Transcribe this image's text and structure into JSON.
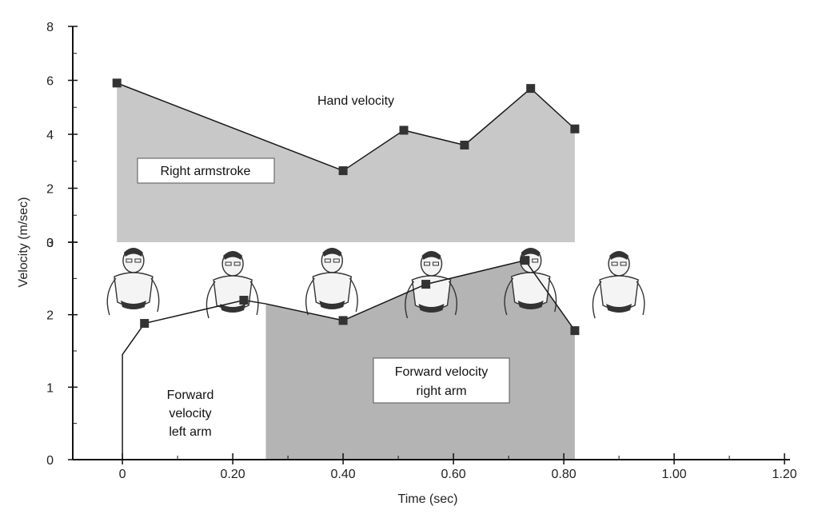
{
  "chart_data": {
    "type": "area",
    "title": "",
    "xlabel": "Time (sec)",
    "ylabel": "Velocity (m/sec)",
    "xlim": [
      -0.09,
      1.21
    ],
    "x_ticks": [
      0,
      0.2,
      0.4,
      0.6,
      0.8,
      1.0,
      1.2
    ],
    "x_tick_labels": [
      "0",
      "0.20",
      "0.40",
      "0.60",
      "0.80",
      "1.00",
      "1.20"
    ],
    "upper_panel": {
      "ylim": [
        0,
        8
      ],
      "y_ticks": [
        0,
        2,
        4,
        6,
        8
      ],
      "y_tick_labels": [
        "0",
        "2",
        "4",
        "6",
        "8"
      ],
      "series": [
        {
          "name": "Hand velocity",
          "x": [
            -0.01,
            0.4,
            0.51,
            0.62,
            0.74,
            0.82
          ],
          "y": [
            5.9,
            2.65,
            4.15,
            3.6,
            5.7,
            4.2
          ]
        }
      ],
      "annotations": [
        "Hand velocity",
        "Right armstroke"
      ]
    },
    "lower_panel": {
      "ylim": [
        0,
        3
      ],
      "y_ticks": [
        0,
        1,
        2,
        3
      ],
      "y_tick_labels": [
        "0",
        "1",
        "2",
        "3"
      ],
      "series": [
        {
          "name": "Forward velocity left arm",
          "x": [
            0,
            0.04,
            0.22,
            0.26
          ],
          "y": [
            1.45,
            1.88,
            2.2,
            2.15
          ]
        },
        {
          "name": "Forward velocity right arm",
          "x": [
            0.26,
            0.4,
            0.55,
            0.73,
            0.82
          ],
          "y": [
            2.15,
            1.92,
            2.42,
            2.75,
            1.78
          ]
        }
      ],
      "annotations": [
        "Forward velocity left arm",
        "Forward velocity right arm"
      ]
    },
    "annotation_labels": {
      "hand": "Hand velocity",
      "right_armstroke": "Right armstroke",
      "left_arm": [
        "Forward",
        "velocity",
        "left arm"
      ],
      "right_arm": [
        "Forward velocity",
        "right arm"
      ]
    },
    "colors": {
      "upper_fill": "#c8c8c8",
      "lower_right_fill": "#b4b4b4",
      "line": "#1a1a1a",
      "marker": "#333333",
      "axis": "#111111"
    },
    "swimmer_figures": 6
  }
}
